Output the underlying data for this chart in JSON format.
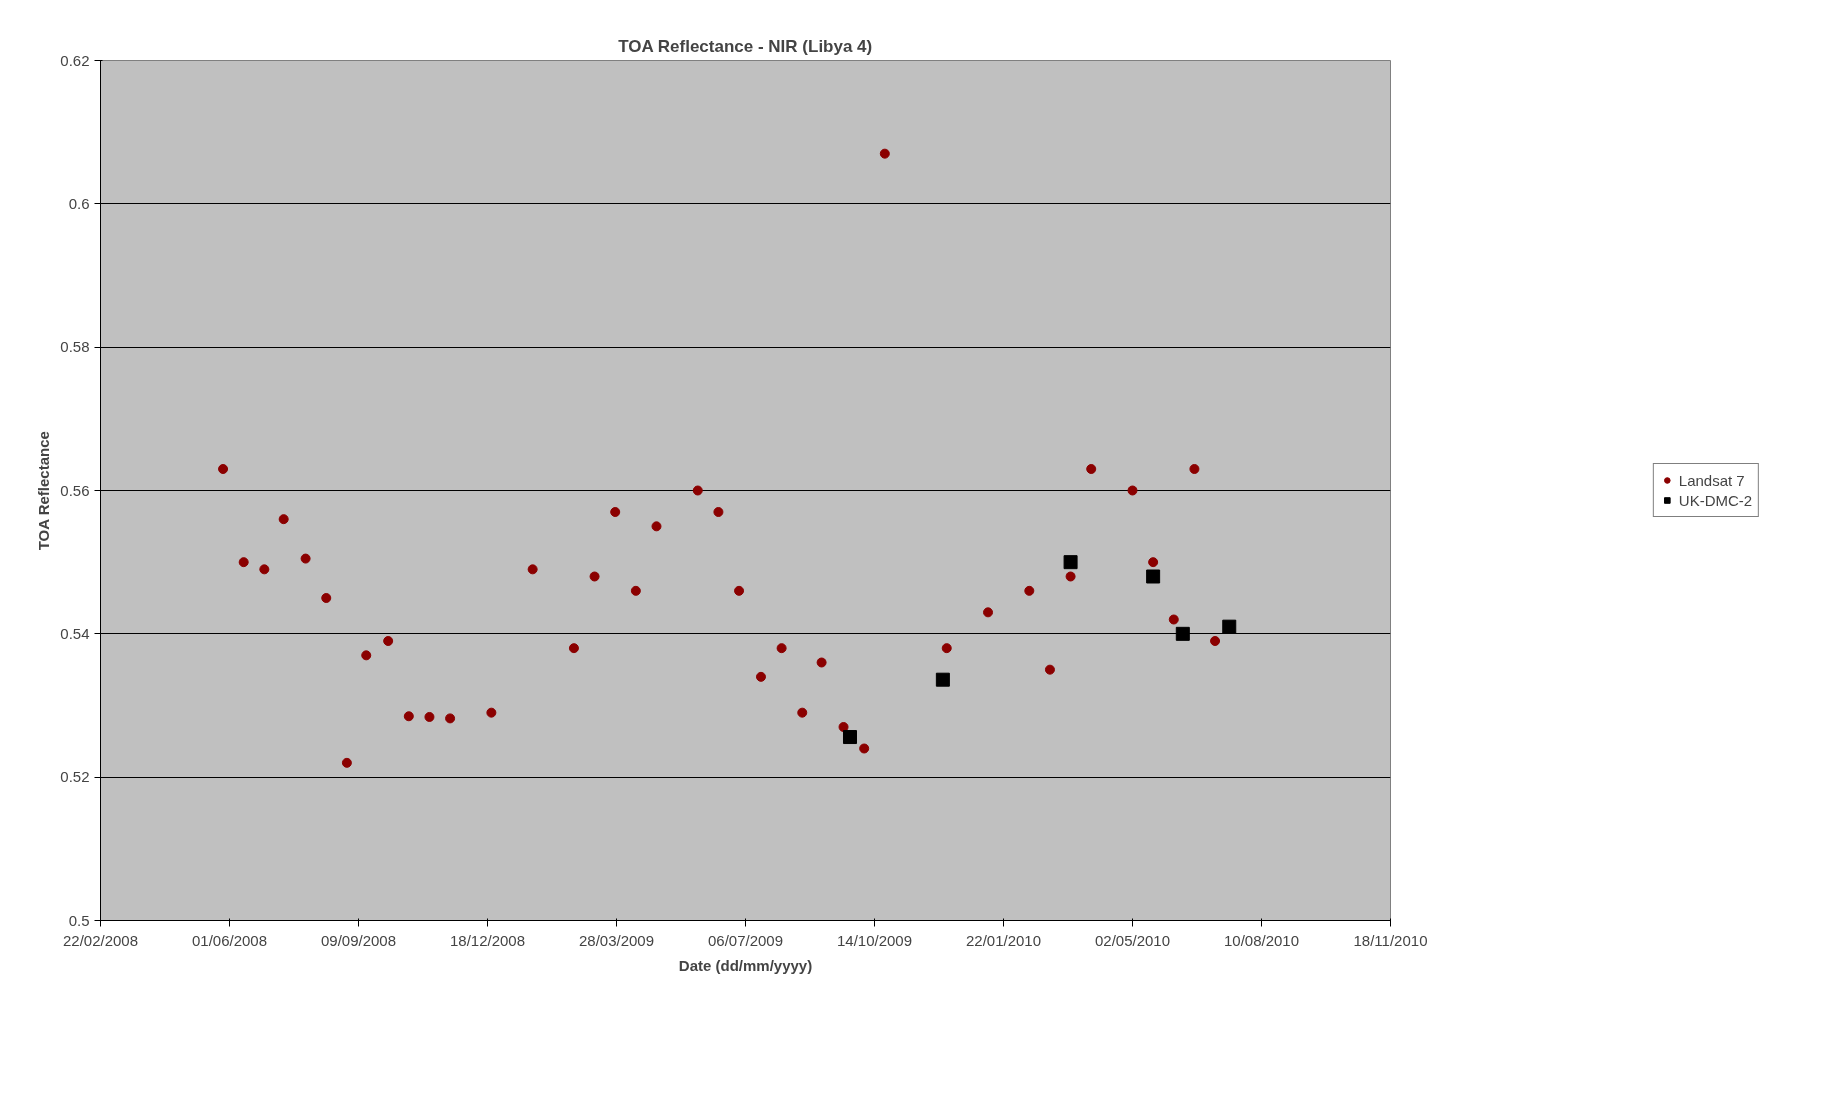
{
  "chart_data": {
    "type": "scatter",
    "title": "TOA Reflectance - NIR (Libya 4)",
    "xlabel": "Date (dd/mm/yyyy)",
    "ylabel": "TOA Reflectance",
    "xlim": [
      "2008-02-22",
      "2010-11-18"
    ],
    "ylim": [
      0.5,
      0.62
    ],
    "xticks": [
      {
        "value": "2008-02-22",
        "label": "22/02/2008"
      },
      {
        "value": "2008-06-01",
        "label": "01/06/2008"
      },
      {
        "value": "2008-09-09",
        "label": "09/09/2008"
      },
      {
        "value": "2008-12-18",
        "label": "18/12/2008"
      },
      {
        "value": "2009-03-28",
        "label": "28/03/2009"
      },
      {
        "value": "2009-07-06",
        "label": "06/07/2009"
      },
      {
        "value": "2009-10-14",
        "label": "14/10/2009"
      },
      {
        "value": "2010-01-22",
        "label": "22/01/2010"
      },
      {
        "value": "2010-05-02",
        "label": "02/05/2010"
      },
      {
        "value": "2010-08-10",
        "label": "10/08/2010"
      },
      {
        "value": "2010-11-18",
        "label": "18/11/2010"
      }
    ],
    "yticks": [
      0.5,
      0.52,
      0.54,
      0.56,
      0.58,
      0.6,
      0.62
    ],
    "grid": "y",
    "legend": "right",
    "series": [
      {
        "name": "Landsat 7",
        "color": "#8b0000",
        "marker": "circle",
        "x": [
          "2008-05-27",
          "2008-06-12",
          "2008-06-28",
          "2008-07-13",
          "2008-07-30",
          "2008-08-15",
          "2008-08-31",
          "2008-09-15",
          "2008-10-02",
          "2008-10-18",
          "2008-11-03",
          "2008-11-19",
          "2008-12-21",
          "2009-01-22",
          "2009-02-23",
          "2009-03-11",
          "2009-03-27",
          "2009-04-12",
          "2009-04-28",
          "2009-05-30",
          "2009-06-15",
          "2009-07-01",
          "2009-07-18",
          "2009-08-03",
          "2009-08-19",
          "2009-09-03",
          "2009-09-20",
          "2009-10-06",
          "2009-10-22",
          "2009-12-09",
          "2010-01-10",
          "2010-02-11",
          "2010-02-27",
          "2010-03-15",
          "2010-03-31",
          "2010-05-02",
          "2010-05-18",
          "2010-06-03",
          "2010-06-19",
          "2010-07-05"
        ],
        "values": [
          0.563,
          0.55,
          0.549,
          0.556,
          0.5505,
          0.545,
          0.522,
          0.537,
          0.539,
          0.5285,
          0.5284,
          0.5282,
          0.529,
          0.549,
          0.538,
          0.548,
          0.557,
          0.546,
          0.555,
          0.56,
          0.557,
          0.546,
          0.534,
          0.538,
          0.529,
          0.536,
          0.527,
          0.524,
          0.607,
          0.538,
          0.543,
          0.546,
          0.535,
          0.548,
          0.563,
          0.56,
          0.55,
          0.542,
          0.563,
          0.539
        ]
      },
      {
        "name": "UK-DMC-2",
        "color": "#000000",
        "marker": "square",
        "x": [
          "2009-09-25",
          "2009-12-06",
          "2010-03-15",
          "2010-05-18",
          "2010-06-10",
          "2010-07-16"
        ],
        "values": [
          0.5256,
          0.5336,
          0.55,
          0.548,
          0.54,
          0.541
        ]
      }
    ]
  }
}
